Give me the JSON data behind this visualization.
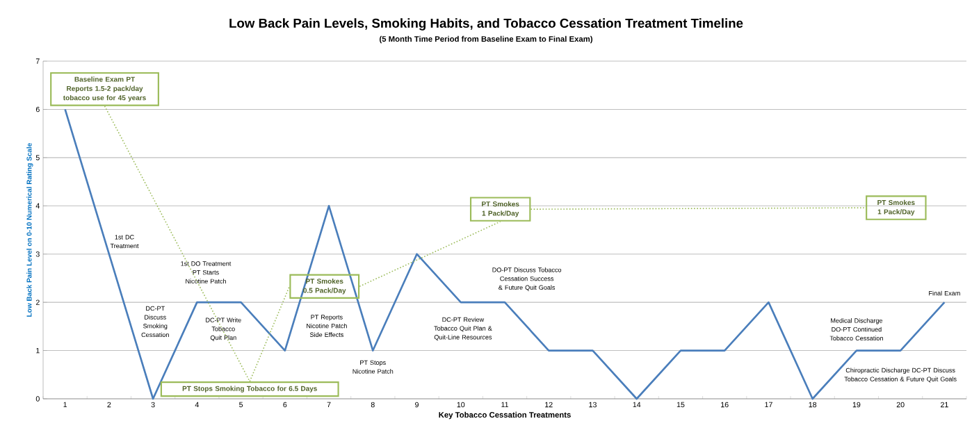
{
  "chart_data": {
    "type": "line",
    "title": "Low Back Pain Levels, Smoking Habits, and Tobacco Cessation Treatment Timeline",
    "subtitle": "(5 Month Time Period from Baseline Exam to Final Exam)",
    "xlabel": "Key Tobacco Cessation Treatments",
    "ylabel": "Low Back Pain Level on 0-10 Numerical Rating Scale",
    "categories": [
      "1",
      "2",
      "3",
      "4",
      "5",
      "6",
      "7",
      "8",
      "9",
      "10",
      "11",
      "12",
      "13",
      "14",
      "15",
      "16",
      "17",
      "18",
      "19",
      "20",
      "21"
    ],
    "values": [
      6,
      3,
      0,
      2,
      2,
      1,
      4,
      1,
      3,
      2,
      2,
      1,
      1,
      0,
      1,
      1,
      2,
      0,
      1,
      1,
      2
    ],
    "color": "#4a7ebb",
    "line_style": "solid",
    "grid": "y",
    "ylim": [
      0,
      7
    ],
    "yticks": [
      0,
      1,
      2,
      3,
      4,
      5,
      6,
      7
    ],
    "annotations": [
      "Baseline Exam PT Reports 1.5-2 pack/day tobacco use for 45 years",
      "1st DC Treatment",
      "DC-PT Discuss Smoking Cessation",
      "1st DO Treatment PT Starts Nicotine Patch",
      "DC-PT Write Tobacco Quit Plan",
      "PT Stops Smoking Tobacco for 6.5 Days",
      "PT Smokes 0.5 Pack/Day",
      "PT Reports Nicotine Patch Side Effects",
      "PT Stops Nicotine Patch",
      "PT Smokes 1 Pack/Day",
      "DC-PT Review Tobacco Quit Plan & Quit-Line Resources",
      "DO-PT Discuss Tobacco Cessation Success & Future Quit Goals",
      "PT Smokes 1 Pack/Day",
      "Medical Discharge DO-PT Continued Tobacco Cessation",
      "Chiropractic Discharge DC-PT Discuss Tobacco Cessation & Future Quit Goals",
      "Final Exam"
    ]
  }
}
